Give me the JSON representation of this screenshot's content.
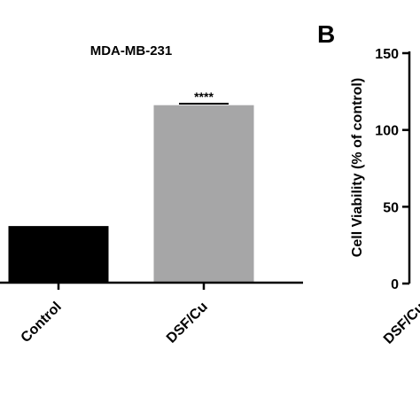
{
  "chart_data": [
    {
      "type": "bar",
      "title": "MDA-MB-231",
      "categories": [
        "Control",
        "DSF/Cu"
      ],
      "values": [
        37,
        116
      ],
      "colors": [
        "#000000",
        "#a6a6a7"
      ],
      "ylim": [
        0,
        150
      ],
      "annotation": "****"
    },
    {
      "type": "bar",
      "panel_label": "B",
      "ylabel": "Cell Viability (% of control)",
      "yticks": [
        "0",
        "50",
        "100",
        "150"
      ],
      "ytick_values": [
        0,
        50,
        100,
        150
      ],
      "ylim": [
        0,
        150
      ],
      "categories": [
        "DSF/Cu"
      ]
    }
  ]
}
